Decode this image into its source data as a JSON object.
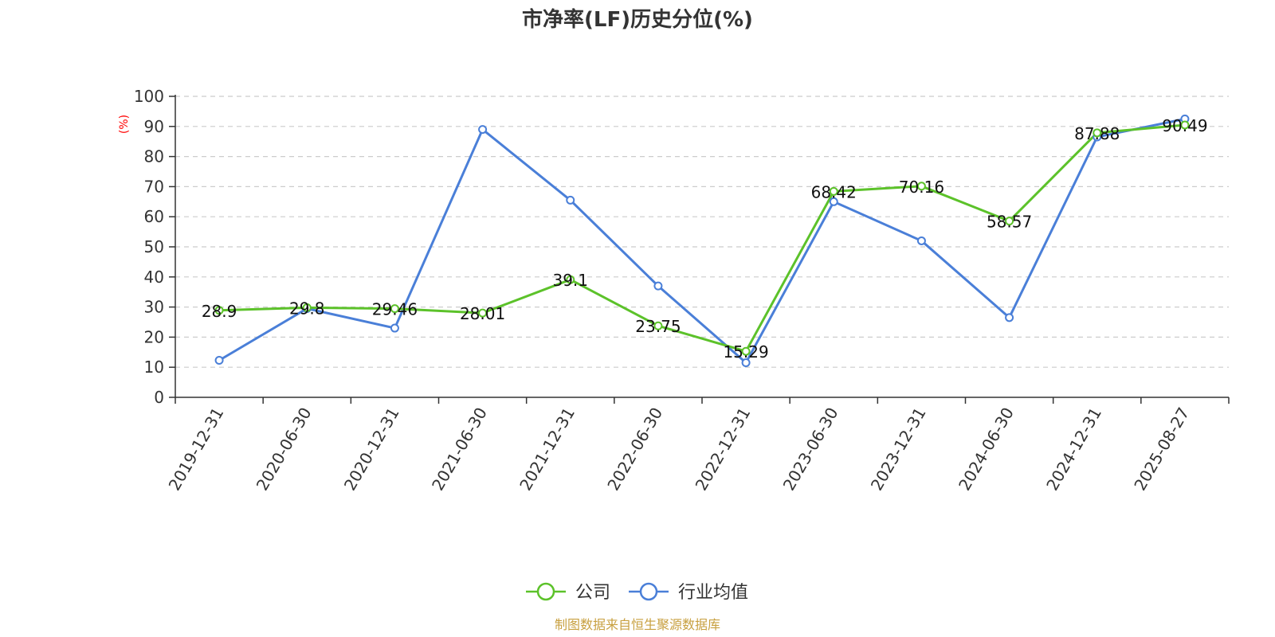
{
  "chart_data": {
    "type": "line",
    "title": "市净率(LF)历史分位(%)",
    "ylabel": "(%)",
    "ylim": [
      0,
      100
    ],
    "yticks": [
      0,
      10,
      20,
      30,
      40,
      50,
      60,
      70,
      80,
      90,
      100
    ],
    "categories": [
      "2019-12-31",
      "2020-06-30",
      "2020-12-31",
      "2021-06-30",
      "2021-12-31",
      "2022-06-30",
      "2022-12-31",
      "2023-06-30",
      "2023-12-31",
      "2024-06-30",
      "2024-12-31",
      "2025-08-27"
    ],
    "grid": true,
    "legend_position": "bottom",
    "series": [
      {
        "name": "公司",
        "color": "#5cc22a",
        "values": [
          28.9,
          29.8,
          29.46,
          28.01,
          39.1,
          23.75,
          15.29,
          68.42,
          70.16,
          58.57,
          87.88,
          90.49
        ],
        "labels": [
          "28.9",
          "29.8",
          "29.46",
          "28.01",
          "39.1",
          "23.75",
          "15.29",
          "68.42",
          "70.16",
          "58.57",
          "87.88",
          "90.49"
        ]
      },
      {
        "name": "行业均值",
        "color": "#4a7fd8",
        "values": [
          12.3,
          29.5,
          23.0,
          89.0,
          65.5,
          37.0,
          11.5,
          65.0,
          52.0,
          26.5,
          86.5,
          92.5
        ]
      }
    ],
    "source": "制图数据来自恒生聚源数据库"
  }
}
